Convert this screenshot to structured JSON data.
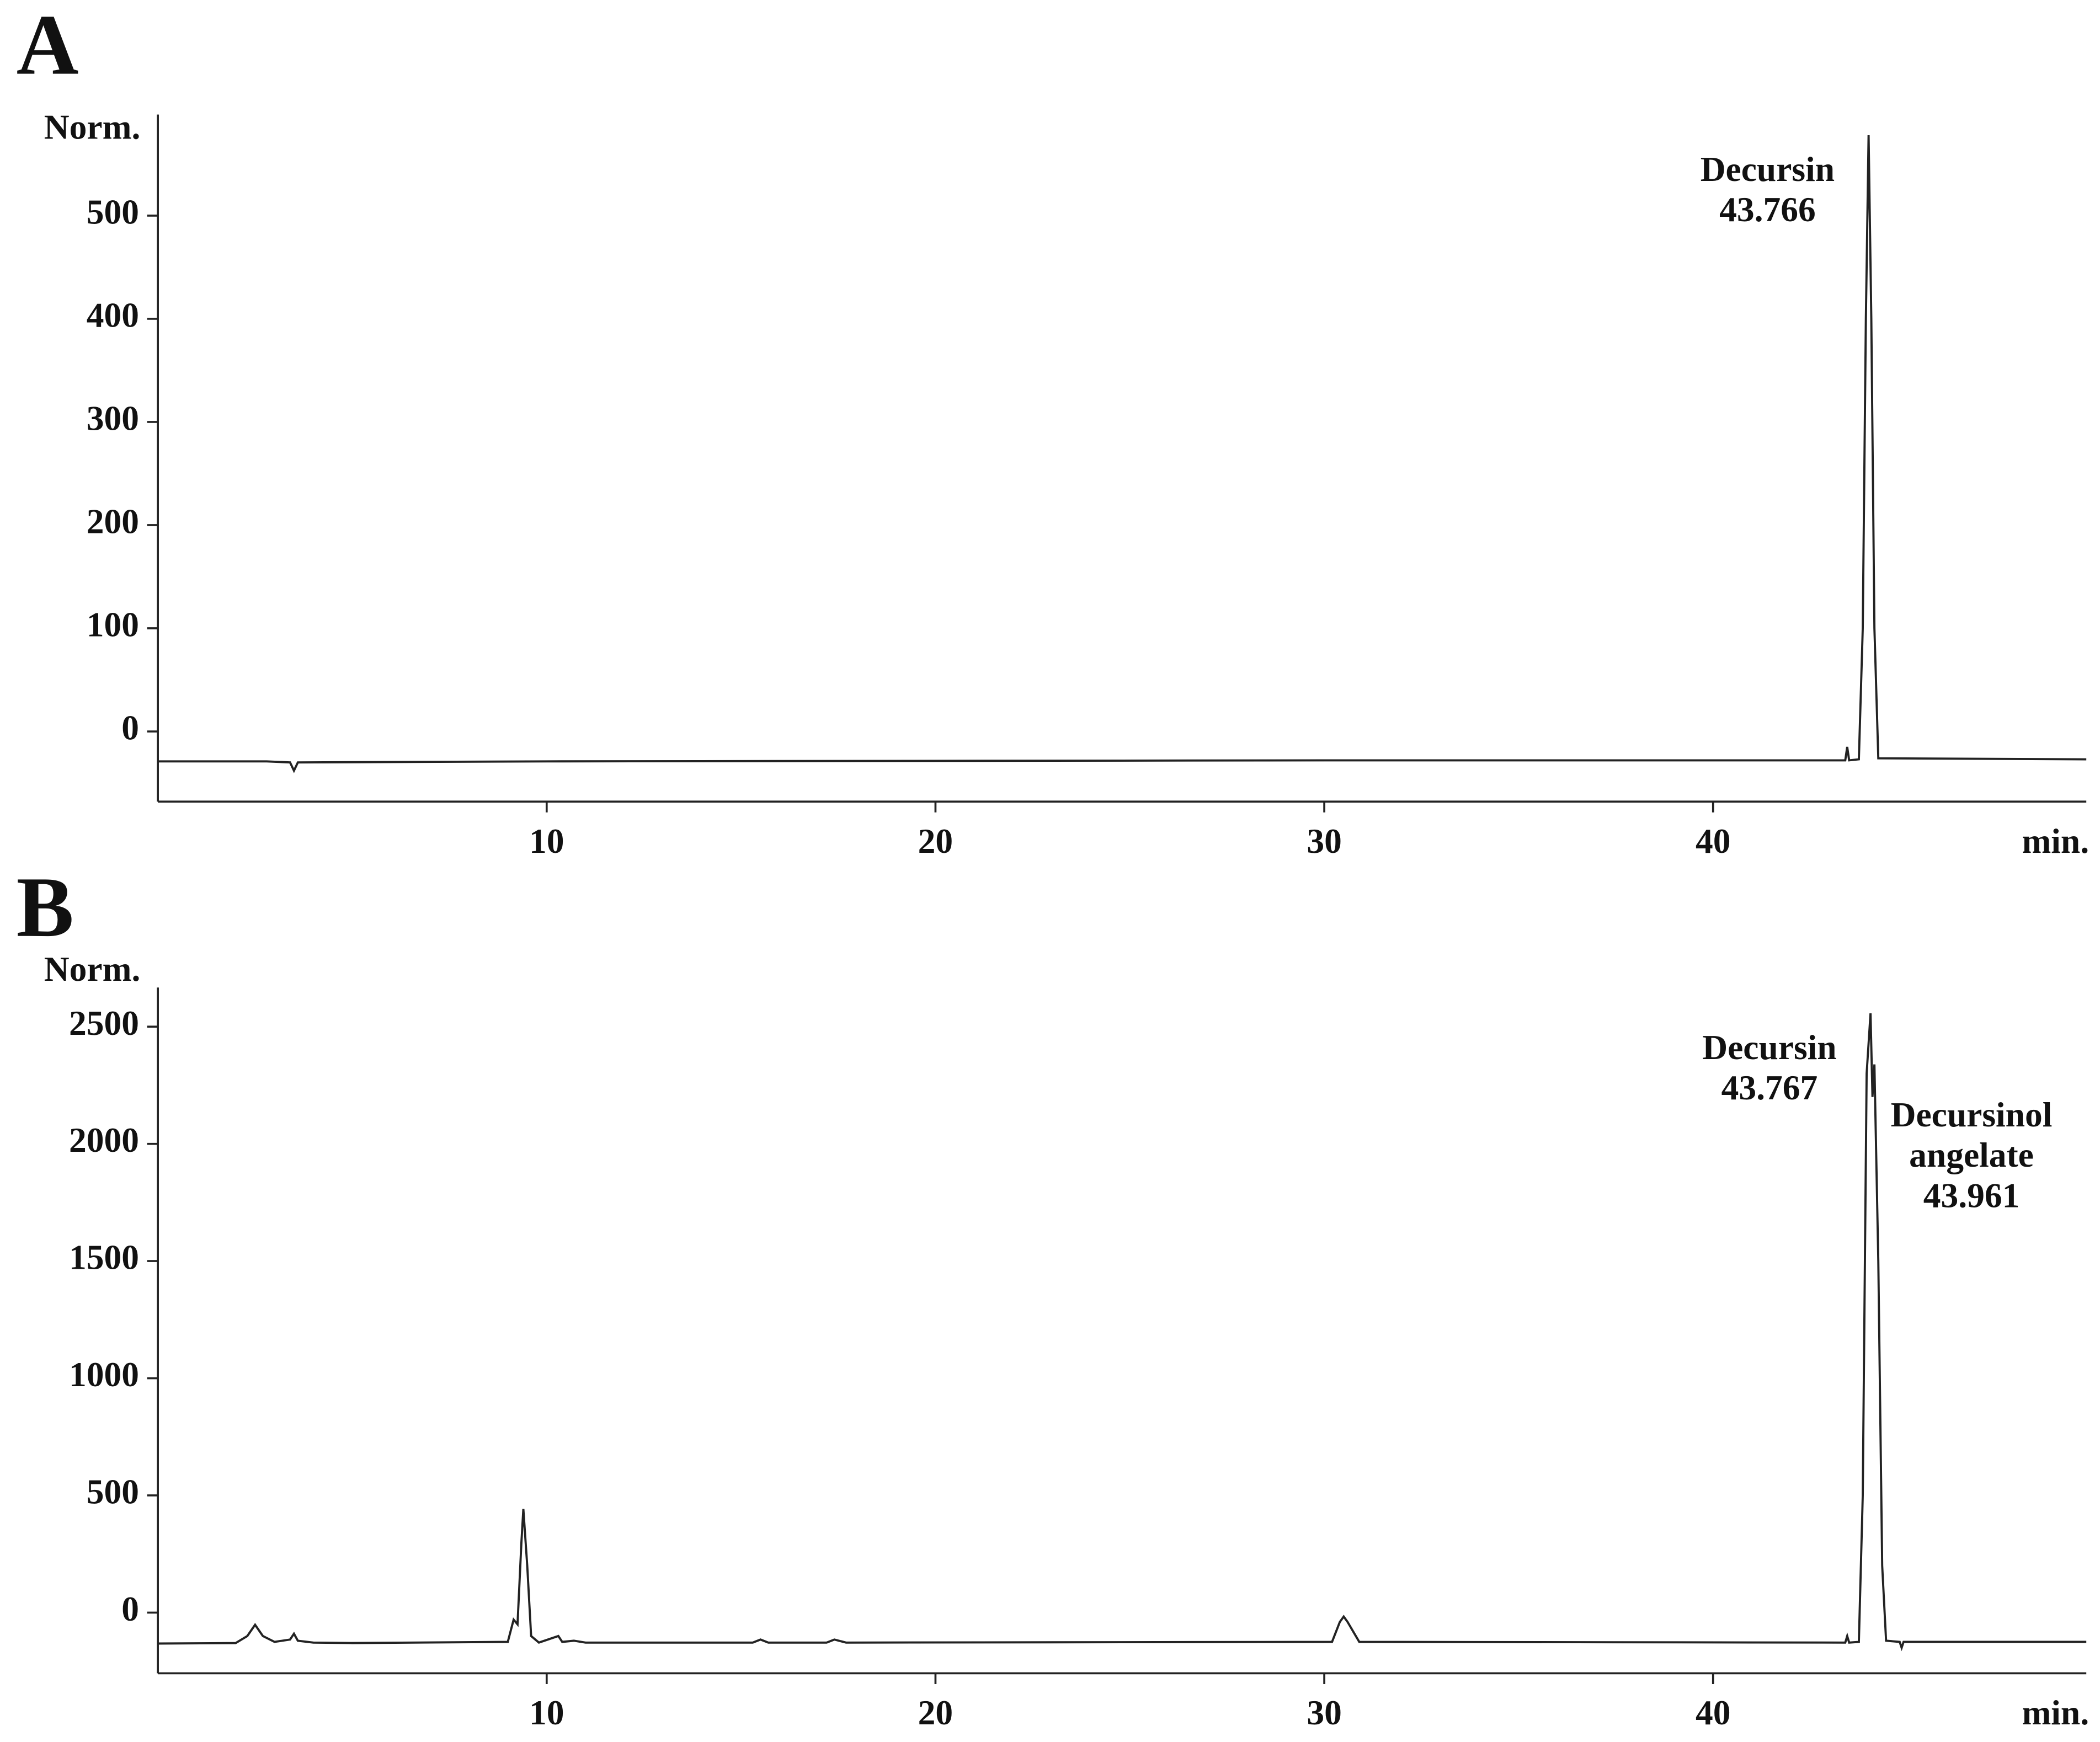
{
  "chart_data": [
    {
      "type": "line",
      "title": "A",
      "y_label": "Norm.",
      "x_label": "min.",
      "xlim": [
        0,
        49.6
      ],
      "ylim": [
        -68,
        598
      ],
      "xticks": [
        10,
        20,
        30,
        40
      ],
      "yticks": [
        0,
        100,
        200,
        300,
        400,
        500
      ],
      "series": [
        {
          "color": "#222222",
          "x": [
            0,
            2.8,
            3.4,
            3.5,
            3.6,
            10,
            30,
            43.4,
            43.45,
            43.5,
            43.75,
            43.85,
            43.93,
            44.0,
            44.07,
            44.15,
            44.25,
            49.6
          ],
          "values": [
            -29,
            -29,
            -30,
            -38,
            -30,
            -29,
            -28,
            -28,
            -15,
            -28,
            -27,
            100,
            400,
            578,
            400,
            100,
            -26,
            -27
          ]
        }
      ],
      "annotations": [
        {
          "label": [
            "Decursin"
          ],
          "time": 43.766,
          "x": 44.0,
          "y": 578
        }
      ]
    },
    {
      "type": "line",
      "title": "B",
      "y_label": "Norm.",
      "x_label": "min.",
      "xlim": [
        0,
        49.6
      ],
      "ylim": [
        -259,
        2667
      ],
      "xticks": [
        10,
        20,
        30,
        40
      ],
      "yticks": [
        0,
        500,
        1000,
        1500,
        2000,
        2500
      ],
      "series": [
        {
          "color": "#222222",
          "x": [
            0,
            2.0,
            2.3,
            2.5,
            2.7,
            3.0,
            3.4,
            3.5,
            3.6,
            4.0,
            5,
            9.0,
            9.15,
            9.25,
            9.35,
            9.4,
            9.5,
            9.6,
            9.8,
            10.3,
            10.4,
            10.7,
            11,
            15.3,
            15.5,
            15.7,
            17.2,
            17.4,
            17.7,
            30.2,
            30.4,
            30.5,
            30.6,
            30.9,
            43.4,
            43.45,
            43.5,
            43.75,
            43.85,
            43.95,
            44.05,
            44.1,
            44.15,
            44.25,
            44.35,
            44.45,
            44.8,
            44.85,
            44.9,
            49.6
          ],
          "values": [
            -132,
            -130,
            -100,
            -52,
            -100,
            -125,
            -115,
            -90,
            -120,
            -128,
            -130,
            -125,
            -30,
            -50,
            300,
            442,
            200,
            -100,
            -128,
            -100,
            -125,
            -120,
            -128,
            -128,
            -115,
            -128,
            -128,
            -115,
            -128,
            -125,
            -40,
            -17,
            -40,
            -125,
            -128,
            -100,
            -128,
            -125,
            500,
            2300,
            2557,
            2200,
            2339,
            1500,
            200,
            -120,
            -125,
            -150,
            -125,
            -125
          ]
        }
      ],
      "annotations": [
        {
          "label": [
            "Decursin"
          ],
          "time": 43.767,
          "x": 44.05,
          "y": 2557
        },
        {
          "label": [
            "Decursinol",
            "angelate"
          ],
          "time": 43.961,
          "x": 44.15,
          "y": 2339
        }
      ]
    }
  ]
}
